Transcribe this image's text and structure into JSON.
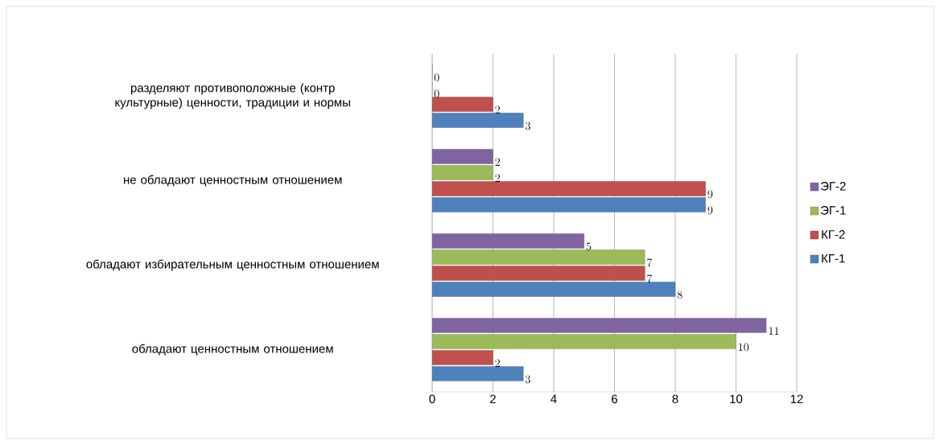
{
  "chart_data": {
    "type": "bar",
    "orientation": "horizontal",
    "categories": [
      "разделяют противоположные (контр культурные) ценности, традиции и нормы",
      "не обладают ценностным отношением",
      "обладают избирательным ценностным отношением",
      "обладают ценностным отношением"
    ],
    "series": [
      {
        "name": "КГ-1",
        "color": "#4f81bd",
        "values": [
          3,
          9,
          8,
          3
        ]
      },
      {
        "name": "КГ-2",
        "color": "#c0504d",
        "values": [
          2,
          9,
          7,
          2
        ]
      },
      {
        "name": "ЭГ-1",
        "color": "#9bbb59",
        "values": [
          0,
          2,
          7,
          10
        ]
      },
      {
        "name": "ЭГ-2",
        "color": "#8064a2",
        "values": [
          0,
          2,
          5,
          11
        ]
      }
    ],
    "xlim": [
      0,
      12
    ],
    "xticks": [
      0,
      2,
      4,
      6,
      8,
      10,
      12
    ],
    "grid": "x",
    "legend": "right",
    "data_labels": true
  }
}
